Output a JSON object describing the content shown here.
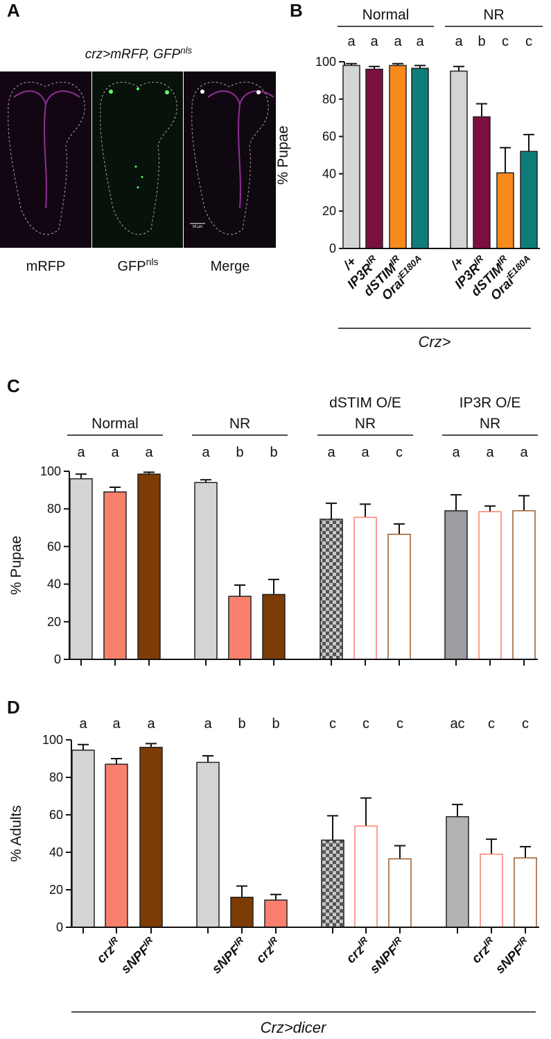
{
  "panel_a": {
    "panel": "A",
    "title": {
      "text": "crz>mRFP, GFP",
      "sup": "nls"
    },
    "images": [
      {
        "text": "mRFP"
      },
      {
        "text": "GFP",
        "sup": "nls"
      },
      {
        "text": "Merge"
      }
    ],
    "scale_bar": "50 µm"
  },
  "chart_data": [
    {
      "type": "bar",
      "panel": "B",
      "ylabel": "% Pupae",
      "ylim": [
        0,
        100
      ],
      "yticks": [
        0,
        20,
        40,
        60,
        80,
        100
      ],
      "footer": "Crz>",
      "groups": [
        {
          "name": [
            "Normal"
          ],
          "categories": [
            {
              "text": "/+"
            },
            {
              "text": "IP3R",
              "sup": "IR"
            },
            {
              "text": "dSTIM",
              "sup": "IR"
            },
            {
              "text": "Orai",
              "sup": "E180A"
            }
          ],
          "values": [
            98,
            96,
            98,
            96.5
          ],
          "errors": [
            1,
            1.5,
            1,
            1.5
          ],
          "letters": [
            "a",
            "a",
            "a",
            "a"
          ],
          "colors": [
            "#d4d4d6",
            "#7b0f40",
            "#f7891d",
            "#0e7c79"
          ],
          "styles": [
            "filled",
            "filled",
            "filled",
            "filled"
          ]
        },
        {
          "name": [
            "NR"
          ],
          "categories": [
            {
              "text": "/+"
            },
            {
              "text": "IP3R",
              "sup": "IR"
            },
            {
              "text": "dSTIM",
              "sup": "IR"
            },
            {
              "text": "Orai",
              "sup": "E180A"
            }
          ],
          "values": [
            95,
            70.5,
            40.5,
            52
          ],
          "errors": [
            2.5,
            7,
            13.5,
            9
          ],
          "letters": [
            "a",
            "b",
            "c",
            "c"
          ],
          "colors": [
            "#d4d4d6",
            "#7b0f40",
            "#f7891d",
            "#0e7c79"
          ],
          "styles": [
            "filled",
            "filled",
            "filled",
            "filled"
          ]
        }
      ]
    },
    {
      "type": "bar",
      "panel": "C",
      "ylabel": "% Pupae",
      "ylim": [
        0,
        100
      ],
      "yticks": [
        0,
        20,
        40,
        60,
        80,
        100
      ],
      "groups": [
        {
          "name": [
            "Normal"
          ],
          "values": [
            96,
            89,
            98.5
          ],
          "errors": [
            2.5,
            2.5,
            1
          ],
          "letters": [
            "a",
            "a",
            "a"
          ],
          "colors": [
            "#d4d4d6",
            "#f9806c",
            "#7d3b05"
          ],
          "styles": [
            "filled",
            "filled",
            "filled"
          ]
        },
        {
          "name": [
            "NR"
          ],
          "values": [
            94,
            33.5,
            34.5
          ],
          "errors": [
            1.5,
            6,
            8
          ],
          "letters": [
            "a",
            "b",
            "b"
          ],
          "colors": [
            "#d4d4d6",
            "#f9806c",
            "#7d3b05"
          ],
          "styles": [
            "filled",
            "filled",
            "filled"
          ]
        },
        {
          "name": [
            "dSTIM O/E",
            "NR"
          ],
          "values": [
            74.5,
            75.5,
            66.5
          ],
          "errors": [
            8.5,
            7,
            5.5
          ],
          "letters": [
            "a",
            "a",
            "c"
          ],
          "colors": [
            "#555555",
            "#f9806c",
            "#9a5a2a"
          ],
          "styles": [
            "checkered",
            "outline",
            "outline"
          ]
        },
        {
          "name": [
            "IP3R O/E",
            "NR"
          ],
          "values": [
            79,
            78.5,
            79
          ],
          "errors": [
            8.5,
            3,
            8
          ],
          "letters": [
            "a",
            "a",
            "a"
          ],
          "colors": [
            "#9c9ca2",
            "#f9806c",
            "#9a5a2a"
          ],
          "styles": [
            "filled",
            "outline",
            "outline"
          ]
        }
      ]
    },
    {
      "type": "bar",
      "panel": "D",
      "ylabel": "% Adults",
      "ylim": [
        0,
        100
      ],
      "yticks": [
        0,
        20,
        40,
        60,
        80,
        100
      ],
      "footer": "Crz>dicer",
      "groups": [
        {
          "categories": [
            null,
            {
              "text": "crz",
              "sup": "IR"
            },
            {
              "text": "sNPF",
              "sup": "IR"
            }
          ],
          "values": [
            94.5,
            87,
            96
          ],
          "errors": [
            3,
            3,
            2
          ],
          "letters": [
            "a",
            "a",
            "a"
          ],
          "colors": [
            "#d4d4d6",
            "#f9806c",
            "#7d3b05"
          ],
          "styles": [
            "filled",
            "filled",
            "filled"
          ]
        },
        {
          "categories": [
            null,
            {
              "text": "sNPF",
              "sup": "IR"
            },
            {
              "text": "crz",
              "sup": "IR"
            }
          ],
          "values": [
            88,
            16,
            14.5
          ],
          "errors": [
            3.5,
            6,
            3
          ],
          "letters": [
            "a",
            "b",
            "b"
          ],
          "colors": [
            "#d4d4d6",
            "#7d3b05",
            "#f9806c"
          ],
          "styles": [
            "filled",
            "filled",
            "filled"
          ]
        },
        {
          "categories": [
            null,
            {
              "text": "crz",
              "sup": "IR"
            },
            {
              "text": "sNPF",
              "sup": "IR"
            }
          ],
          "values": [
            46.5,
            54,
            36.5
          ],
          "errors": [
            13,
            15,
            7
          ],
          "letters": [
            "c",
            "c",
            "c"
          ],
          "colors": [
            "#555555",
            "#f9806c",
            "#9a5a2a"
          ],
          "styles": [
            "checkered",
            "outline",
            "outline"
          ]
        },
        {
          "categories": [
            null,
            {
              "text": "crz",
              "sup": "IR"
            },
            {
              "text": "sNPF",
              "sup": "IR"
            }
          ],
          "values": [
            59,
            39,
            37
          ],
          "errors": [
            6.5,
            8,
            6
          ],
          "letters": [
            "ac",
            "c",
            "c"
          ],
          "colors": [
            "#b3b3b3",
            "#f9806c",
            "#9a5a2a"
          ],
          "styles": [
            "filled",
            "outline",
            "outline"
          ]
        }
      ]
    }
  ]
}
